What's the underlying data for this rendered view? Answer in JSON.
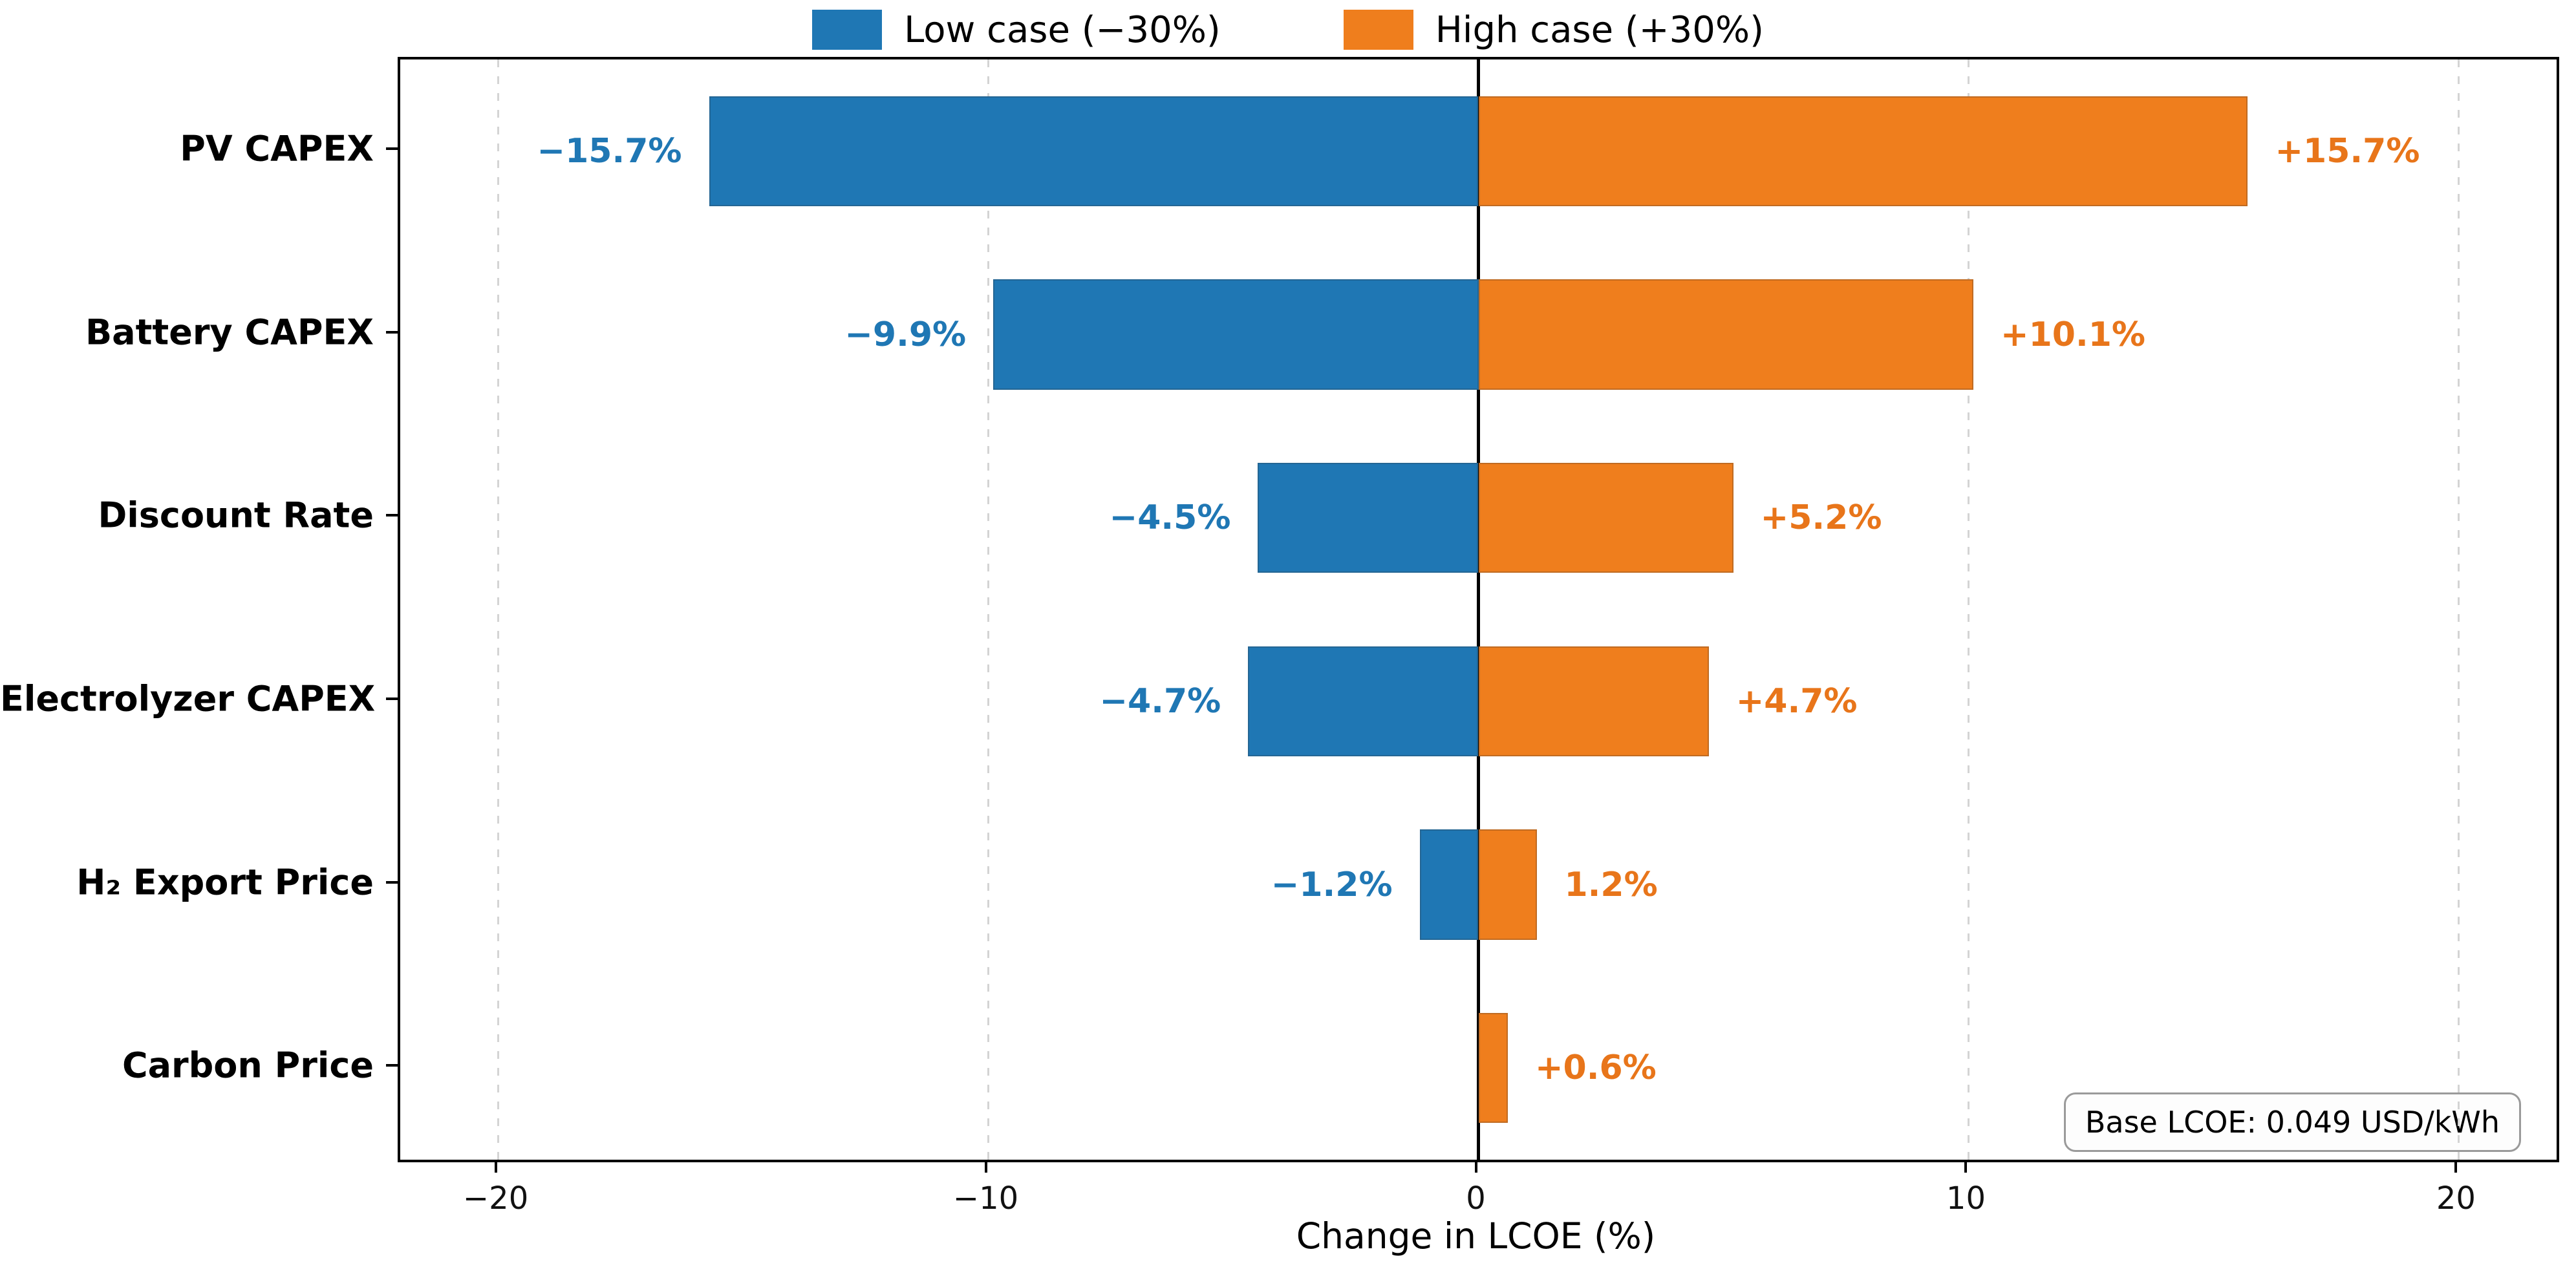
{
  "chart_data": {
    "type": "bar",
    "orientation": "horizontal",
    "title": "",
    "xlabel": "Change in LCOE (%)",
    "xlim": [
      -22,
      22
    ],
    "xticks": [
      -20,
      -10,
      0,
      10,
      20
    ],
    "xtick_labels": [
      "−20",
      "−10",
      "0",
      "10",
      "20"
    ],
    "grid": "vertical dashed at xticks",
    "legend_position": "top center",
    "zero_line": true,
    "categories": [
      "PV CAPEX",
      "Battery CAPEX",
      "Discount Rate",
      "Electrolyzer CAPEX",
      "H₂ Export Price",
      "Carbon Price"
    ],
    "series": [
      {
        "name": "Low case (−30%)",
        "color": "#1f77b4",
        "label_color": "#1f77b4",
        "values": [
          -15.7,
          -9.9,
          -4.5,
          -4.7,
          -1.2,
          null
        ],
        "labels": [
          "−15.7%",
          "−9.9%",
          "−4.5%",
          "−4.7%",
          "−1.2%",
          ""
        ]
      },
      {
        "name": "High case (+30%)",
        "color": "#ef7e1d",
        "label_color": "#e8751a",
        "values": [
          15.7,
          10.1,
          5.2,
          4.7,
          1.2,
          0.6
        ],
        "labels": [
          "+15.7%",
          "+10.1%",
          "+5.2%",
          "+4.7%",
          "1.2%",
          "+0.6%"
        ]
      }
    ],
    "annotation": "Base LCOE: 0.049 USD/kWh",
    "bar_height_fraction": 0.6
  },
  "legend": {
    "low_label": "Low case (−30%)",
    "high_label": "High case (+30%)"
  },
  "axis": {
    "xlabel": "Change in LCOE (%)"
  },
  "annotation": {
    "text": "Base LCOE: 0.049 USD/kWh"
  }
}
